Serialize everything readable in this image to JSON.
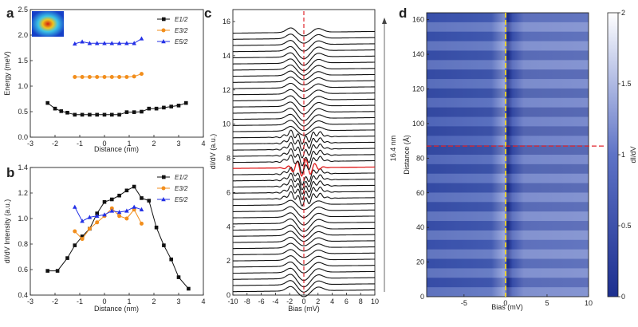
{
  "panel_labels": {
    "a": "a",
    "b": "b",
    "c": "c",
    "d": "d"
  },
  "colors": {
    "black_series": "#111111",
    "orange_series": "#f28e1c",
    "blue_series": "#2431e6",
    "highlight": "#e01b1b",
    "guide_yellow": "#ffe01a",
    "guide_red": "#e0252c",
    "map_dark": "#1d2f8f",
    "map_light": "#ffffff"
  },
  "chart_data": [
    {
      "id": "a",
      "type": "line",
      "xlabel": "Distance (nm)",
      "ylabel": "Energy (meV)",
      "xlim": [
        -3,
        4
      ],
      "ylim": [
        0,
        2.5
      ],
      "xticks": [
        "-3",
        "-2",
        "-1",
        "0",
        "1",
        "2",
        "3",
        "4"
      ],
      "yticks": [
        "0.0",
        "0.5",
        "1.0",
        "1.5",
        "2.0",
        "2.5"
      ],
      "legend": [
        "E1/2",
        "E3/2",
        "E5/2"
      ],
      "legend_position": "top-right",
      "inset": "false-color spatial map (top-left)",
      "series": [
        {
          "name": "E1/2",
          "color": "#111111",
          "marker": "square",
          "x": [
            -2.3,
            -2.0,
            -1.75,
            -1.5,
            -1.2,
            -0.9,
            -0.6,
            -0.3,
            0.0,
            0.3,
            0.6,
            0.9,
            1.2,
            1.5,
            1.8,
            2.1,
            2.4,
            2.7,
            3.0,
            3.3
          ],
          "y": [
            0.67,
            0.56,
            0.51,
            0.48,
            0.44,
            0.44,
            0.44,
            0.44,
            0.44,
            0.44,
            0.44,
            0.49,
            0.49,
            0.5,
            0.56,
            0.56,
            0.58,
            0.6,
            0.62,
            0.67
          ]
        },
        {
          "name": "E3/2",
          "color": "#f28e1c",
          "marker": "circle",
          "x": [
            -1.2,
            -0.9,
            -0.6,
            -0.3,
            0.0,
            0.3,
            0.6,
            0.9,
            1.2,
            1.5
          ],
          "y": [
            1.18,
            1.18,
            1.18,
            1.18,
            1.18,
            1.18,
            1.18,
            1.18,
            1.19,
            1.24
          ]
        },
        {
          "name": "E5/2",
          "color": "#2431e6",
          "marker": "triangle",
          "x": [
            -1.2,
            -0.9,
            -0.6,
            -0.3,
            0.0,
            0.3,
            0.6,
            0.9,
            1.2,
            1.5
          ],
          "y": [
            1.83,
            1.87,
            1.84,
            1.84,
            1.84,
            1.84,
            1.84,
            1.84,
            1.84,
            1.93
          ]
        }
      ]
    },
    {
      "id": "b",
      "type": "line",
      "xlabel": "Distance (nm)",
      "ylabel": "dI/dV  Intensity (a.u.)",
      "xlim": [
        -3,
        4
      ],
      "ylim": [
        0.4,
        1.4
      ],
      "xticks": [
        "-3",
        "-2",
        "-1",
        "0",
        "1",
        "2",
        "3",
        "4"
      ],
      "yticks": [
        "0.4",
        "0.6",
        "0.8",
        "1.0",
        "1.2",
        "1.4"
      ],
      "legend": [
        "E1/2",
        "E3/2",
        "E5/2"
      ],
      "legend_position": "top-right",
      "series": [
        {
          "name": "E1/2",
          "color": "#111111",
          "marker": "square",
          "x": [
            -2.3,
            -1.9,
            -1.5,
            -1.2,
            -0.9,
            -0.6,
            -0.3,
            0.0,
            0.3,
            0.6,
            0.9,
            1.2,
            1.5,
            1.8,
            2.1,
            2.4,
            2.7,
            3.0,
            3.4
          ],
          "y": [
            0.59,
            0.59,
            0.69,
            0.79,
            0.86,
            0.92,
            1.04,
            1.13,
            1.15,
            1.18,
            1.22,
            1.25,
            1.16,
            1.14,
            0.93,
            0.79,
            0.68,
            0.54,
            0.45
          ]
        },
        {
          "name": "E3/2",
          "color": "#f28e1c",
          "marker": "circle",
          "x": [
            -1.2,
            -0.9,
            -0.6,
            -0.3,
            0.0,
            0.3,
            0.6,
            0.9,
            1.2,
            1.5
          ],
          "y": [
            0.9,
            0.84,
            0.92,
            0.97,
            1.02,
            1.08,
            1.02,
            1.0,
            1.07,
            0.96
          ]
        },
        {
          "name": "E5/2",
          "color": "#2431e6",
          "marker": "triangle",
          "x": [
            -1.2,
            -0.9,
            -0.6,
            -0.3,
            0.0,
            0.3,
            0.6,
            0.9,
            1.2,
            1.5
          ],
          "y": [
            1.09,
            0.98,
            1.01,
            1.02,
            1.03,
            1.06,
            1.05,
            1.06,
            1.09,
            1.07
          ]
        }
      ]
    },
    {
      "id": "c",
      "type": "line",
      "xlabel": "Bias (mV)",
      "ylabel": "dI/dV (a.u.)",
      "xlim": [
        -10,
        10
      ],
      "ylim": [
        0,
        16.7
      ],
      "xticks": [
        "-10",
        "-8",
        "-6",
        "-4",
        "-2",
        "0",
        "2",
        "4",
        "6",
        "8",
        "10"
      ],
      "yticks": [
        "0",
        "2",
        "4",
        "6",
        "8",
        "10",
        "12",
        "14",
        "16"
      ],
      "annotation": "16.4 nm",
      "n_spectra": 43,
      "offset_step": 0.36,
      "first_offset": 0.25,
      "highlight_index": 20,
      "dashed_line_x": 0
    },
    {
      "id": "d",
      "type": "heatmap",
      "xlabel": "Bias (mV)",
      "ylabel": "Distance (Å)",
      "xlim": [
        -9.5,
        10
      ],
      "ylim": [
        0,
        164
      ],
      "xticks": [
        "-5",
        "0",
        "5",
        "10"
      ],
      "yticks": [
        "0",
        "20",
        "40",
        "60",
        "80",
        "100",
        "120",
        "140",
        "160"
      ],
      "colorbar_label": "dI/dV",
      "colorbar_range": [
        0,
        2
      ],
      "colorbar_ticks": [
        "0",
        "0.5",
        "1",
        "1.5",
        "2"
      ],
      "vertical_dashed_x": 0,
      "horizontal_dashed_y": 87
    }
  ]
}
